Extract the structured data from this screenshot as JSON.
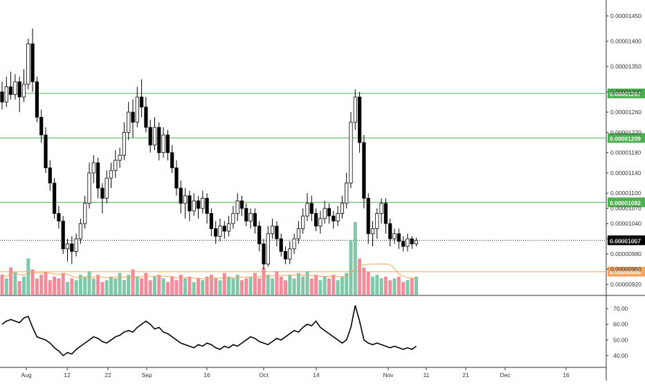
{
  "chart_data": [
    {
      "type": "candlestick",
      "title": "",
      "y_axis_side": "right",
      "y_ticks": [
        "0.00001450",
        "0.00001400",
        "0.00001350",
        "0.00001300",
        "0.00001260",
        "0.00001220",
        "0.00001180",
        "0.00001140",
        "0.00001100",
        "0.00001070",
        "0.00001040",
        "0.00001010",
        "0.00000980",
        "0.00000950",
        "0.00000920"
      ],
      "x_ticks": [
        "Aug",
        "12",
        "22",
        "Sep",
        "16",
        "Oct",
        "14",
        "Nov",
        "11",
        "21",
        "Dec",
        "16"
      ],
      "horizontal_levels": [
        {
          "label": "0.00001297",
          "value": 1297,
          "color": "#4caf50"
        },
        {
          "label": "0.00001209",
          "value": 1209,
          "color": "#4caf50"
        },
        {
          "label": "0.00001082",
          "value": 1082,
          "color": "#4caf50"
        },
        {
          "label": "0.00000945",
          "value": 945,
          "color": "#f7a35c"
        }
      ],
      "last_price": {
        "label": "0.00001007",
        "value": 1007
      },
      "value_unit_note_hidden": false,
      "candles": [
        [
          1300,
          1280,
          1320,
          1265
        ],
        [
          1280,
          1310,
          1330,
          1270
        ],
        [
          1310,
          1295,
          1340,
          1285
        ],
        [
          1295,
          1320,
          1335,
          1285
        ],
        [
          1320,
          1290,
          1330,
          1260
        ],
        [
          1290,
          1315,
          1345,
          1280
        ],
        [
          1315,
          1395,
          1405,
          1305
        ],
        [
          1395,
          1320,
          1425,
          1300
        ],
        [
          1320,
          1250,
          1330,
          1240
        ],
        [
          1250,
          1215,
          1265,
          1200
        ],
        [
          1215,
          1150,
          1230,
          1140
        ],
        [
          1150,
          1120,
          1165,
          1105
        ],
        [
          1120,
          1060,
          1130,
          1050
        ],
        [
          1060,
          1045,
          1075,
          1030
        ],
        [
          1045,
          990,
          1055,
          980
        ],
        [
          990,
          1000,
          1010,
          965
        ],
        [
          1000,
          985,
          1015,
          960
        ],
        [
          985,
          1010,
          1020,
          975
        ],
        [
          1010,
          1040,
          1050,
          1000
        ],
        [
          1040,
          1080,
          1095,
          1030
        ],
        [
          1080,
          1140,
          1160,
          1070
        ],
        [
          1140,
          1160,
          1175,
          1120
        ],
        [
          1160,
          1110,
          1170,
          1090
        ],
        [
          1110,
          1090,
          1120,
          1060
        ],
        [
          1090,
          1130,
          1145,
          1080
        ],
        [
          1130,
          1145,
          1160,
          1110
        ],
        [
          1145,
          1165,
          1185,
          1130
        ],
        [
          1165,
          1175,
          1190,
          1150
        ],
        [
          1175,
          1220,
          1240,
          1165
        ],
        [
          1220,
          1260,
          1280,
          1205
        ],
        [
          1260,
          1240,
          1285,
          1210
        ],
        [
          1240,
          1290,
          1310,
          1230
        ],
        [
          1290,
          1270,
          1325,
          1250
        ],
        [
          1270,
          1230,
          1290,
          1220
        ],
        [
          1230,
          1195,
          1245,
          1180
        ],
        [
          1195,
          1230,
          1250,
          1185
        ],
        [
          1230,
          1180,
          1240,
          1165
        ],
        [
          1180,
          1215,
          1230,
          1170
        ],
        [
          1215,
          1180,
          1225,
          1165
        ],
        [
          1180,
          1150,
          1195,
          1140
        ],
        [
          1150,
          1110,
          1165,
          1095
        ],
        [
          1110,
          1080,
          1125,
          1060
        ],
        [
          1080,
          1095,
          1110,
          1050
        ],
        [
          1095,
          1065,
          1105,
          1045
        ],
        [
          1065,
          1085,
          1100,
          1055
        ],
        [
          1085,
          1070,
          1095,
          1050
        ],
        [
          1070,
          1090,
          1105,
          1060
        ],
        [
          1090,
          1060,
          1100,
          1040
        ],
        [
          1060,
          1030,
          1070,
          1015
        ],
        [
          1030,
          1015,
          1045,
          1000
        ],
        [
          1015,
          1035,
          1050,
          1005
        ],
        [
          1035,
          1025,
          1045,
          1010
        ],
        [
          1025,
          1040,
          1055,
          1015
        ],
        [
          1040,
          1060,
          1075,
          1030
        ],
        [
          1060,
          1085,
          1100,
          1045
        ],
        [
          1085,
          1070,
          1095,
          1055
        ],
        [
          1070,
          1045,
          1080,
          1035
        ],
        [
          1045,
          1060,
          1070,
          1030
        ],
        [
          1060,
          1035,
          1070,
          1020
        ],
        [
          1035,
          1000,
          1045,
          985
        ],
        [
          1000,
          960,
          1010,
          950
        ],
        [
          960,
          1020,
          1035,
          955
        ],
        [
          1020,
          1035,
          1050,
          1010
        ],
        [
          1035,
          1010,
          1045,
          995
        ],
        [
          1010,
          985,
          1020,
          975
        ],
        [
          985,
          970,
          995,
          960
        ],
        [
          970,
          990,
          1005,
          960
        ],
        [
          990,
          1010,
          1020,
          980
        ],
        [
          1010,
          1030,
          1045,
          1000
        ],
        [
          1030,
          1055,
          1070,
          1020
        ],
        [
          1055,
          1080,
          1100,
          1045
        ],
        [
          1080,
          1060,
          1095,
          1045
        ],
        [
          1060,
          1035,
          1070,
          1025
        ],
        [
          1035,
          1050,
          1065,
          1020
        ],
        [
          1050,
          1070,
          1085,
          1040
        ],
        [
          1070,
          1055,
          1080,
          1040
        ],
        [
          1055,
          1045,
          1065,
          1030
        ],
        [
          1045,
          1060,
          1075,
          1035
        ],
        [
          1060,
          1080,
          1095,
          1050
        ],
        [
          1080,
          1120,
          1140,
          1070
        ],
        [
          1120,
          1240,
          1260,
          1110
        ],
        [
          1240,
          1290,
          1305,
          1225
        ],
        [
          1290,
          1200,
          1300,
          1180
        ],
        [
          1200,
          1090,
          1215,
          1070
        ],
        [
          1090,
          1020,
          1100,
          1000
        ],
        [
          1020,
          1030,
          1045,
          995
        ],
        [
          1030,
          1060,
          1070,
          1010
        ],
        [
          1060,
          1080,
          1090,
          1040
        ],
        [
          1080,
          1040,
          1090,
          1020
        ],
        [
          1040,
          1010,
          1050,
          995
        ],
        [
          1010,
          1020,
          1030,
          1000
        ],
        [
          1020,
          1005,
          1030,
          990
        ],
        [
          1005,
          995,
          1015,
          985
        ],
        [
          995,
          1010,
          1020,
          985
        ],
        [
          1010,
          1000,
          1015,
          990
        ],
        [
          1000,
          1007,
          1012,
          995
        ]
      ],
      "volume": [
        22,
        18,
        30,
        25,
        15,
        20,
        40,
        28,
        18,
        22,
        25,
        16,
        20,
        18,
        24,
        14,
        18,
        16,
        22,
        20,
        26,
        18,
        22,
        14,
        16,
        20,
        18,
        24,
        16,
        22,
        28,
        20,
        18,
        24,
        16,
        20,
        22,
        18,
        14,
        20,
        16,
        22,
        18,
        20,
        14,
        18,
        16,
        20,
        22,
        18,
        16,
        24,
        20,
        18,
        22,
        16,
        18,
        20,
        24,
        18,
        30,
        22,
        18,
        26,
        20,
        16,
        22,
        18,
        24,
        20,
        26,
        18,
        22,
        16,
        20,
        18,
        22,
        16,
        20,
        24,
        60,
        80,
        40,
        30,
        25,
        20,
        22,
        18,
        20,
        16,
        18,
        20,
        14,
        16,
        18,
        20
      ],
      "volume_colors_up": "#7fc8a9",
      "volume_colors_down": "#f28c9b",
      "volume_ma_color": "#f7a35c",
      "oscillator": {
        "y_ticks": [
          "70.00",
          "60.00",
          "50.00",
          "40.00"
        ],
        "values": [
          60,
          62,
          63,
          62,
          61,
          64,
          65,
          58,
          52,
          51,
          50,
          48,
          45,
          43,
          40,
          42,
          41,
          44,
          46,
          48,
          50,
          52,
          51,
          49,
          48,
          50,
          52,
          53,
          55,
          56,
          55,
          58,
          60,
          62,
          60,
          57,
          58,
          55,
          54,
          52,
          50,
          48,
          47,
          46,
          45,
          47,
          46,
          48,
          47,
          45,
          44,
          46,
          45,
          47,
          46,
          48,
          50,
          52,
          51,
          49,
          48,
          47,
          49,
          51,
          50,
          52,
          54,
          56,
          55,
          58,
          60,
          59,
          62,
          58,
          56,
          54,
          52,
          50,
          48,
          50,
          58,
          72,
          62,
          50,
          48,
          47,
          48,
          47,
          46,
          45,
          46,
          45,
          44,
          45,
          44,
          46
        ]
      }
    }
  ]
}
